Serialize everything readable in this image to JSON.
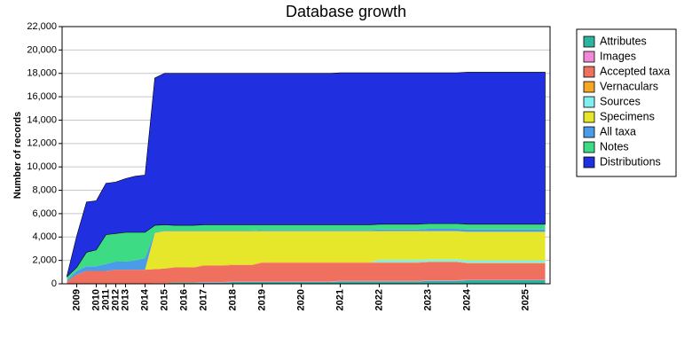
{
  "chart_data": {
    "type": "stacked-area",
    "title": "Database growth",
    "y_label": "Number of records",
    "categories": [
      null,
      "2009",
      null,
      "2010",
      "2011",
      "2012",
      "2013",
      null,
      "2014",
      null,
      "2015",
      null,
      "2016",
      null,
      "2017",
      null,
      null,
      "2018",
      null,
      null,
      "2019",
      null,
      null,
      null,
      "2020",
      null,
      null,
      null,
      "2021",
      null,
      null,
      null,
      "2022",
      null,
      null,
      null,
      null,
      "2023",
      null,
      null,
      null,
      "2024",
      null,
      null,
      null,
      null,
      null,
      "2025",
      null,
      null
    ],
    "series": [
      {
        "name": "Attributes",
        "color": "#2bb5a0",
        "values": [
          0,
          0,
          0,
          0,
          0,
          0,
          0,
          0,
          0,
          50,
          50,
          100,
          100,
          100,
          100,
          100,
          100,
          150,
          150,
          150,
          150,
          150,
          150,
          150,
          150,
          150,
          150,
          150,
          200,
          200,
          200,
          200,
          200,
          200,
          200,
          200,
          200,
          250,
          250,
          250,
          250,
          300,
          300,
          300,
          300,
          300,
          300,
          300,
          300,
          300
        ]
      },
      {
        "name": "Images",
        "color": "#f08ad8",
        "values": [
          0,
          0,
          0,
          0,
          0,
          0,
          0,
          0,
          0,
          0,
          0,
          0,
          0,
          0,
          50,
          50,
          50,
          50,
          50,
          50,
          50,
          50,
          50,
          50,
          50,
          50,
          50,
          50,
          50,
          50,
          50,
          50,
          50,
          50,
          50,
          50,
          50,
          50,
          50,
          50,
          50,
          50,
          50,
          50,
          50,
          50,
          50,
          50,
          50,
          50
        ]
      },
      {
        "name": "Accepted taxa",
        "color": "#f07060",
        "values": [
          200,
          800,
          1100,
          1100,
          1100,
          1200,
          1200,
          1200,
          1200,
          1200,
          1250,
          1300,
          1300,
          1300,
          1400,
          1400,
          1400,
          1400,
          1400,
          1400,
          1600,
          1600,
          1600,
          1600,
          1600,
          1600,
          1600,
          1600,
          1550,
          1550,
          1550,
          1550,
          1550,
          1550,
          1550,
          1550,
          1550,
          1550,
          1550,
          1550,
          1550,
          1400,
          1400,
          1400,
          1400,
          1400,
          1400,
          1400,
          1400,
          1400
        ]
      },
      {
        "name": "Vernaculars",
        "color": "#f5a623",
        "values": [
          0,
          0,
          0,
          0,
          0,
          0,
          0,
          0,
          0,
          0,
          0,
          0,
          0,
          0,
          50,
          50,
          50,
          50,
          50,
          50,
          50,
          50,
          50,
          50,
          50,
          50,
          50,
          50,
          50,
          50,
          50,
          50,
          50,
          50,
          50,
          50,
          50,
          50,
          50,
          50,
          50,
          50,
          50,
          50,
          50,
          50,
          50,
          50,
          50,
          50
        ]
      },
      {
        "name": "Sources",
        "color": "#7ff0f0",
        "values": [
          0,
          0,
          0,
          0,
          0,
          0,
          0,
          0,
          0,
          0,
          0,
          0,
          0,
          0,
          0,
          0,
          0,
          0,
          0,
          0,
          0,
          0,
          0,
          0,
          0,
          0,
          0,
          0,
          0,
          0,
          0,
          0,
          200,
          200,
          200,
          200,
          200,
          200,
          200,
          200,
          200,
          200,
          200,
          200,
          200,
          200,
          200,
          200,
          200,
          200
        ]
      },
      {
        "name": "Specimens",
        "color": "#e6e62a",
        "values": [
          0,
          0,
          0,
          0,
          0,
          0,
          0,
          0,
          0,
          3100,
          3200,
          3100,
          3100,
          3100,
          2900,
          2900,
          2900,
          2850,
          2850,
          2850,
          2650,
          2650,
          2650,
          2650,
          2650,
          2650,
          2650,
          2650,
          2650,
          2650,
          2650,
          2650,
          2450,
          2450,
          2450,
          2450,
          2450,
          2400,
          2400,
          2400,
          2400,
          2450,
          2450,
          2450,
          2450,
          2450,
          2450,
          2450,
          2450,
          2450
        ]
      },
      {
        "name": "All taxa",
        "color": "#4a9be8",
        "values": [
          100,
          300,
          400,
          400,
          600,
          700,
          700,
          800,
          1000,
          50,
          50,
          50,
          50,
          50,
          50,
          50,
          50,
          50,
          50,
          50,
          100,
          100,
          100,
          100,
          100,
          100,
          100,
          100,
          100,
          100,
          100,
          100,
          150,
          150,
          150,
          150,
          150,
          200,
          200,
          200,
          200,
          200,
          200,
          200,
          200,
          200,
          200,
          200,
          200,
          200
        ]
      },
      {
        "name": "Notes",
        "color": "#3ddc84",
        "values": [
          300,
          300,
          1200,
          1400,
          2500,
          2400,
          2500,
          2400,
          2200,
          600,
          500,
          450,
          450,
          450,
          500,
          500,
          500,
          500,
          500,
          500,
          450,
          450,
          450,
          450,
          450,
          450,
          450,
          450,
          450,
          450,
          450,
          450,
          450,
          450,
          450,
          450,
          450,
          450,
          450,
          450,
          450,
          450,
          450,
          450,
          450,
          450,
          450,
          450,
          450,
          450
        ]
      },
      {
        "name": "Distributions",
        "color": "#2030e0",
        "values": [
          100,
          2700,
          4300,
          4200,
          4400,
          4400,
          4600,
          4800,
          4900,
          12600,
          12950,
          13000,
          13000,
          13000,
          12950,
          12950,
          12950,
          12950,
          12950,
          12950,
          12950,
          12950,
          12950,
          12950,
          12950,
          12950,
          12950,
          12950,
          13000,
          13000,
          13000,
          13000,
          12950,
          12950,
          12950,
          12950,
          12950,
          12900,
          12900,
          12900,
          12900,
          13000,
          13000,
          13000,
          13000,
          13000,
          13000,
          13000,
          13000,
          13000
        ]
      }
    ],
    "ylim": [
      0,
      22000
    ],
    "yticks": [
      0,
      {
        "value": 2000,
        "label": "2,000"
      },
      {
        "value": 4000,
        "label": "4,000"
      },
      {
        "value": 6000,
        "label": "6,000"
      },
      {
        "value": 8000,
        "label": "8,000"
      },
      {
        "value": 10000,
        "label": "10,000"
      },
      {
        "value": 12000,
        "label": "12,000"
      },
      {
        "value": 14000,
        "label": "14,000"
      },
      {
        "value": 16000,
        "label": "16,000"
      },
      {
        "value": 18000,
        "label": "18,000"
      },
      {
        "value": 20000,
        "label": "20,000"
      },
      {
        "value": 22000,
        "label": "22,000"
      }
    ],
    "grid": true
  }
}
